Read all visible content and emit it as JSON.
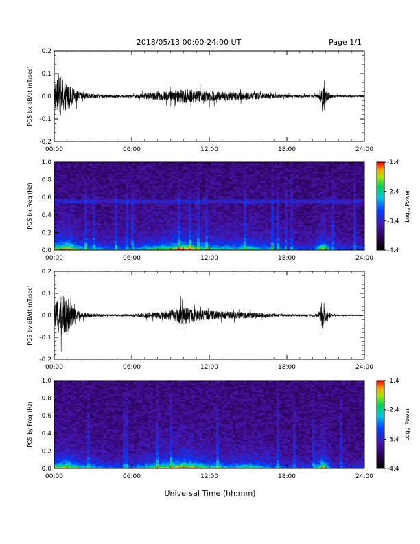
{
  "header": {
    "title": "2018/05/13  00:00-24:00 UT",
    "page": "Page 1/1"
  },
  "footer": {
    "xlabel": "Universal Time (hh:mm)"
  },
  "colors": {
    "trace": "#000000",
    "axis": "#000000"
  },
  "colorbar": {
    "label": "Log10 Power",
    "ticks": [
      "-1.4",
      "-2.4",
      "-3.4",
      "-4.4"
    ],
    "range": [
      -4.4,
      -1.4
    ]
  },
  "chart_data": [
    {
      "type": "line",
      "ylabel": "PG5 bx dB/dt (nT/sec)",
      "xlim": [
        0,
        24
      ],
      "ylim": [
        -0.2,
        0.2
      ],
      "x_ticks": [
        "00:00",
        "06:00",
        "12:00",
        "18:00",
        "24:00"
      ],
      "y_ticks": [
        "0.2",
        "0.1",
        "0.0",
        "-0.1",
        "-0.2"
      ],
      "envelope": {
        "x": [
          0,
          0.5,
          1,
          1.5,
          2,
          3,
          4,
          5,
          6,
          6.5,
          7,
          8,
          9,
          9.5,
          10,
          10.5,
          11,
          12,
          13,
          14,
          15,
          16,
          17,
          18,
          19,
          20,
          20.5,
          20.8,
          21,
          21.5,
          22,
          23,
          24
        ],
        "amplitude": [
          0.12,
          0.2,
          0.15,
          0.07,
          0.04,
          0.02,
          0.015,
          0.012,
          0.012,
          0.02,
          0.03,
          0.04,
          0.05,
          0.065,
          0.08,
          0.07,
          0.06,
          0.05,
          0.045,
          0.04,
          0.035,
          0.03,
          0.02,
          0.015,
          0.012,
          0.012,
          0.02,
          0.2,
          0.06,
          0.015,
          0.01,
          0.008,
          0.008
        ]
      }
    },
    {
      "type": "heatmap",
      "ylabel": "PG5 bx Freq (Hz)",
      "xlim": [
        0,
        24
      ],
      "ylim": [
        0,
        1.0
      ],
      "x_ticks": [
        "00:00",
        "06:00",
        "12:00",
        "18:00",
        "24:00"
      ],
      "y_ticks": [
        "1.0",
        "0.8",
        "0.6",
        "0.4",
        "0.2",
        "0.0"
      ],
      "colorbar_ticks": [
        "-1.4",
        "-2.4",
        "-3.4",
        "-4.4"
      ],
      "colorbar_label": "Log10 Power",
      "activity": {
        "x": [
          0,
          1,
          2,
          4,
          6,
          7,
          8,
          9,
          10,
          11,
          12,
          14,
          15,
          16,
          17,
          18,
          20,
          20.8,
          21.5,
          24
        ],
        "level": [
          0.8,
          0.9,
          0.6,
          0.4,
          0.4,
          0.55,
          0.65,
          0.75,
          0.9,
          0.75,
          0.6,
          0.55,
          0.65,
          0.5,
          0.45,
          0.35,
          0.3,
          0.9,
          0.3,
          0.25
        ]
      }
    },
    {
      "type": "line",
      "ylabel": "PG5 by dB/dt (nT/sec)",
      "xlim": [
        0,
        24
      ],
      "ylim": [
        -0.2,
        0.2
      ],
      "x_ticks": [
        "00:00",
        "06:00",
        "12:00",
        "18:00",
        "24:00"
      ],
      "y_ticks": [
        "0.2",
        "0.1",
        "0.0",
        "-0.1",
        "-0.2"
      ],
      "envelope": {
        "x": [
          0,
          0.5,
          1,
          1.5,
          2,
          3,
          4,
          5,
          6,
          6.5,
          7,
          8,
          9,
          9.5,
          10,
          10.5,
          11,
          12,
          13,
          14,
          15,
          16,
          17,
          18,
          19,
          20,
          20.5,
          20.8,
          21,
          21.5,
          22,
          23,
          24
        ],
        "amplitude": [
          0.1,
          0.2,
          0.2,
          0.08,
          0.03,
          0.02,
          0.012,
          0.01,
          0.012,
          0.018,
          0.025,
          0.035,
          0.05,
          0.07,
          0.1,
          0.08,
          0.06,
          0.045,
          0.04,
          0.035,
          0.03,
          0.025,
          0.015,
          0.012,
          0.01,
          0.012,
          0.02,
          0.2,
          0.06,
          0.012,
          0.008,
          0.006,
          0.006
        ]
      }
    },
    {
      "type": "heatmap",
      "ylabel": "PG5 by Freq (Hz)",
      "xlim": [
        0,
        24
      ],
      "ylim": [
        0,
        1.0
      ],
      "x_ticks": [
        "00:00",
        "06:00",
        "12:00",
        "18:00",
        "24:00"
      ],
      "y_ticks": [
        "1.0",
        "0.8",
        "0.6",
        "0.4",
        "0.2",
        "0.0"
      ],
      "colorbar_ticks": [
        "-1.4",
        "-2.4",
        "-3.4",
        "-4.4"
      ],
      "colorbar_label": "Log10 Power",
      "activity": {
        "x": [
          0,
          1,
          2,
          4,
          6,
          7,
          8,
          9,
          10,
          11,
          12,
          14,
          15,
          16,
          17,
          18,
          20,
          20.8,
          21.5,
          24
        ],
        "level": [
          0.7,
          0.8,
          0.55,
          0.35,
          0.35,
          0.5,
          0.7,
          0.75,
          0.9,
          0.75,
          0.6,
          0.5,
          0.6,
          0.5,
          0.4,
          0.3,
          0.25,
          0.95,
          0.25,
          0.2
        ]
      }
    }
  ]
}
